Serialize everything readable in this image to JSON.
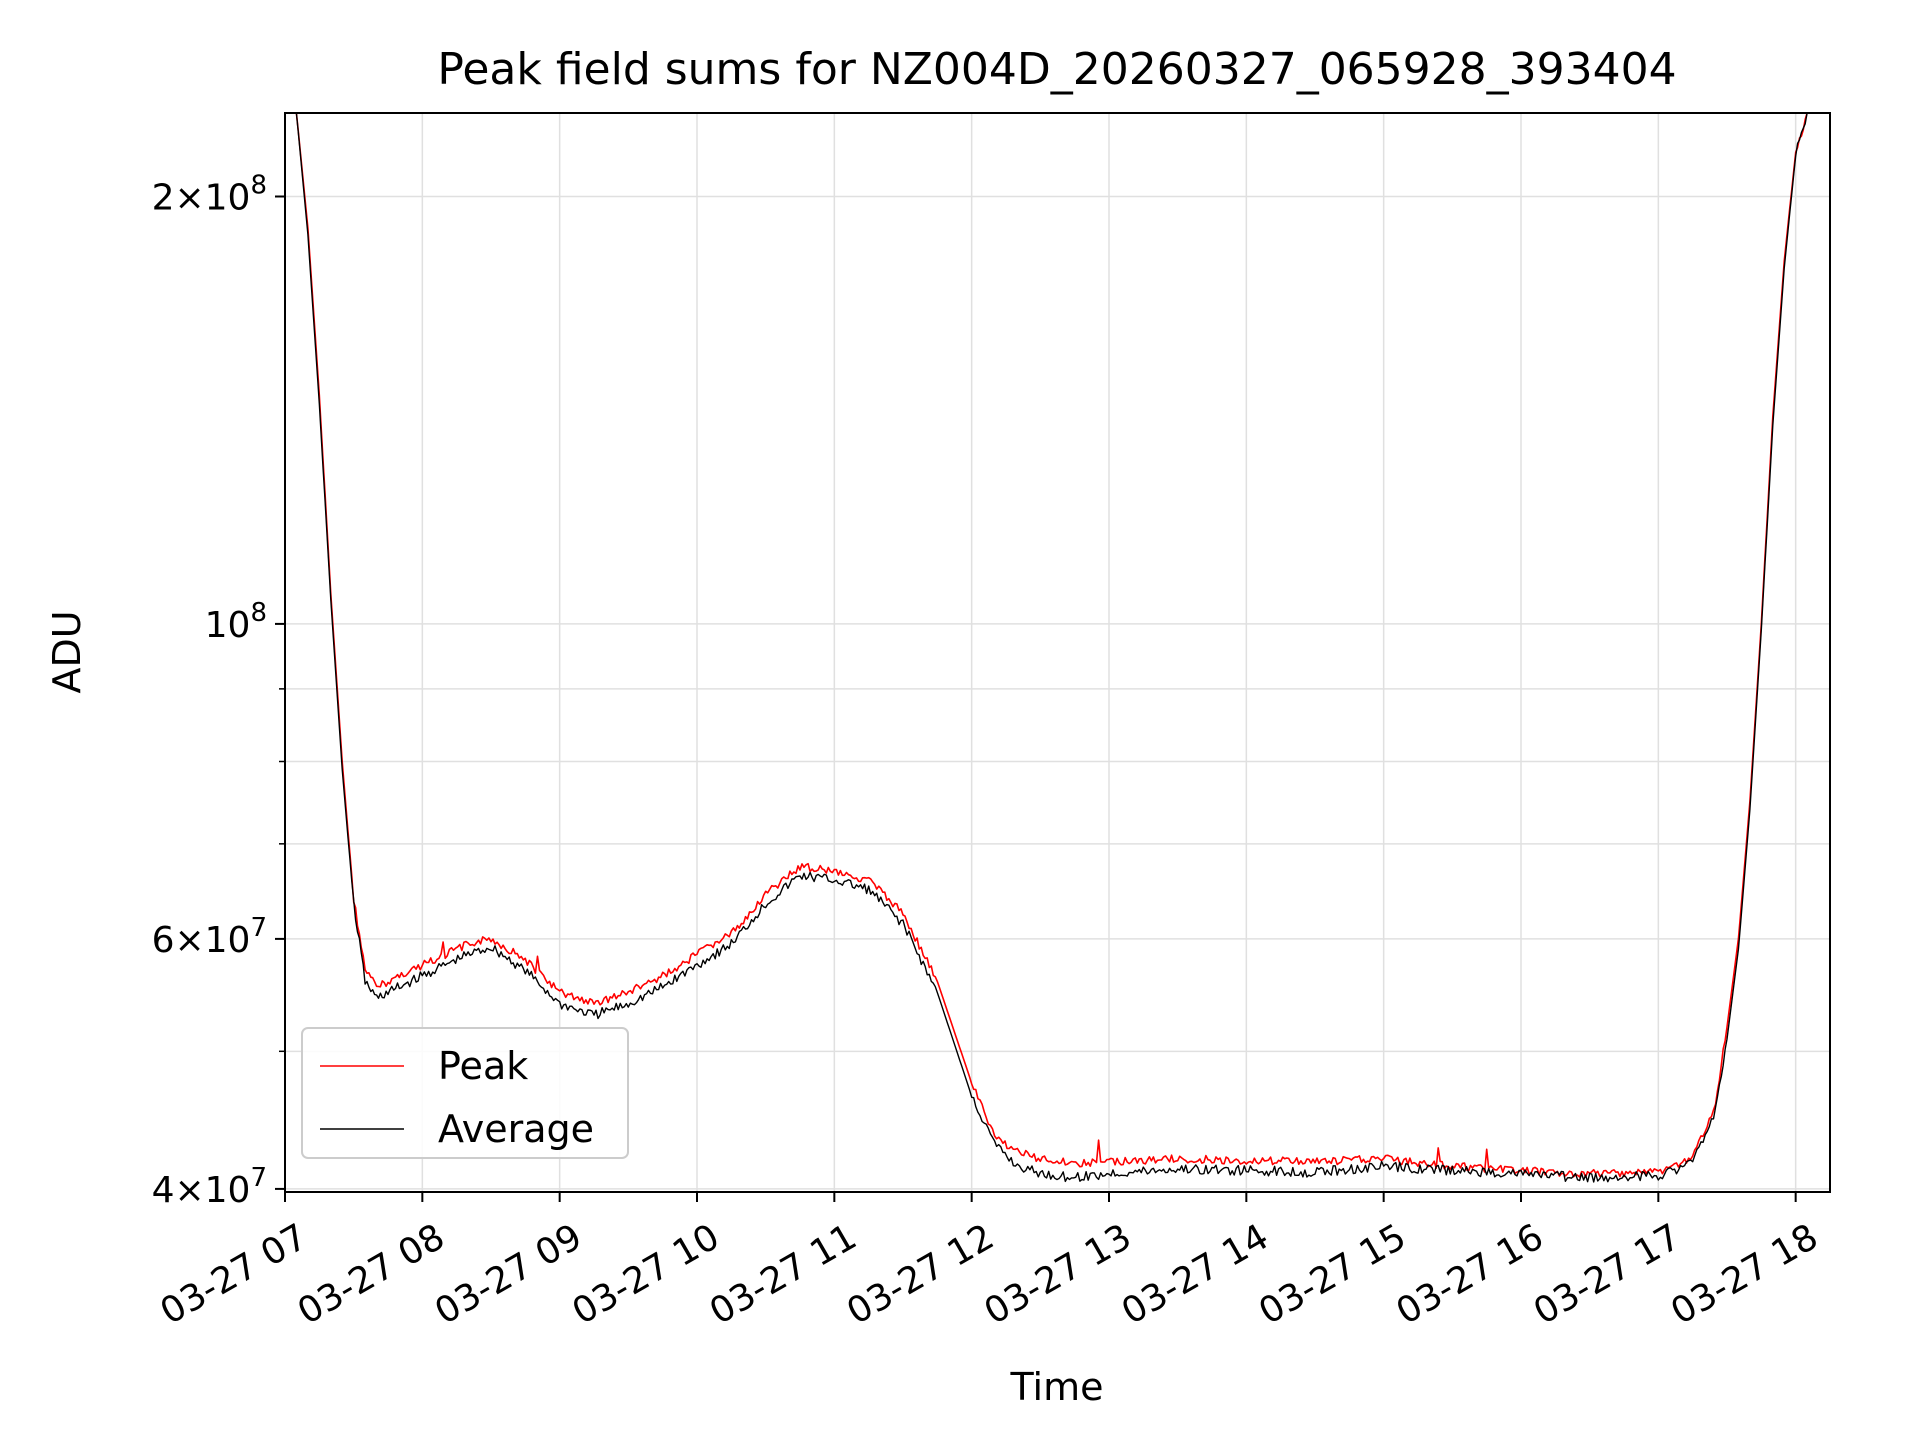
{
  "chart_data": {
    "type": "line",
    "title": "Peak field sums for NZ004D_20260327_065928_393404",
    "xlabel": "Time",
    "ylabel": "ADU",
    "yscale": "log",
    "grid": true,
    "legend_position": "lower-left",
    "xlim": [
      "2026-03-27 07:00",
      "2026-03-27 18:15"
    ],
    "ylim": [
      39800000,
      229000000
    ],
    "xticks": [
      {
        "t": "2026-03-27 07:00",
        "label": "03-27 07"
      },
      {
        "t": "2026-03-27 08:00",
        "label": "03-27 08"
      },
      {
        "t": "2026-03-27 09:00",
        "label": "03-27 09"
      },
      {
        "t": "2026-03-27 10:00",
        "label": "03-27 10"
      },
      {
        "t": "2026-03-27 11:00",
        "label": "03-27 11"
      },
      {
        "t": "2026-03-27 12:00",
        "label": "03-27 12"
      },
      {
        "t": "2026-03-27 13:00",
        "label": "03-27 13"
      },
      {
        "t": "2026-03-27 14:00",
        "label": "03-27 14"
      },
      {
        "t": "2026-03-27 15:00",
        "label": "03-27 15"
      },
      {
        "t": "2026-03-27 16:00",
        "label": "03-27 16"
      },
      {
        "t": "2026-03-27 17:00",
        "label": "03-27 17"
      },
      {
        "t": "2026-03-27 18:00",
        "label": "03-27 18"
      }
    ],
    "yticks_major": [
      {
        "v": 40000000,
        "base": "4",
        "exp": "7"
      },
      {
        "v": 60000000,
        "base": "6",
        "exp": "7"
      },
      {
        "v": 100000000,
        "base": "",
        "exp": "8"
      },
      {
        "v": 200000000,
        "base": "2",
        "exp": "8"
      }
    ],
    "yticks_minor": [
      50000000,
      70000000,
      80000000,
      90000000
    ],
    "series": [
      {
        "name": "Peak",
        "color": "#ff0000",
        "x": [
          "2026-03-27 07:05",
          "2026-03-27 07:10",
          "2026-03-27 07:15",
          "2026-03-27 07:20",
          "2026-03-27 07:25",
          "2026-03-27 07:30",
          "2026-03-27 07:35",
          "2026-03-27 07:40",
          "2026-03-27 07:45",
          "2026-03-27 07:50",
          "2026-03-27 08:00",
          "2026-03-27 08:10",
          "2026-03-27 08:20",
          "2026-03-27 08:30",
          "2026-03-27 08:45",
          "2026-03-27 09:00",
          "2026-03-27 09:15",
          "2026-03-27 09:30",
          "2026-03-27 09:45",
          "2026-03-27 10:00",
          "2026-03-27 10:15",
          "2026-03-27 10:30",
          "2026-03-27 10:45",
          "2026-03-27 11:00",
          "2026-03-27 11:15",
          "2026-03-27 11:30",
          "2026-03-27 11:45",
          "2026-03-27 12:00",
          "2026-03-27 12:10",
          "2026-03-27 12:20",
          "2026-03-27 12:30",
          "2026-03-27 12:40",
          "2026-03-27 12:50",
          "2026-03-27 13:00",
          "2026-03-27 13:30",
          "2026-03-27 14:00",
          "2026-03-27 14:30",
          "2026-03-27 15:00",
          "2026-03-27 15:30",
          "2026-03-27 16:00",
          "2026-03-27 16:30",
          "2026-03-27 17:00",
          "2026-03-27 17:15",
          "2026-03-27 17:25",
          "2026-03-27 17:30",
          "2026-03-27 17:35",
          "2026-03-27 17:40",
          "2026-03-27 17:45",
          "2026-03-27 17:50",
          "2026-03-27 17:55",
          "2026-03-27 18:00",
          "2026-03-27 18:05"
        ],
        "values": [
          229000000,
          190000000,
          145000000,
          105000000,
          80000000,
          64000000,
          57000000,
          55500000,
          56000000,
          56500000,
          57500000,
          58500000,
          59500000,
          60000000,
          58000000,
          55000000,
          54000000,
          55000000,
          56500000,
          58500000,
          60500000,
          64500000,
          67500000,
          67000000,
          66000000,
          62500000,
          56000000,
          47500000,
          43500000,
          42500000,
          42000000,
          41800000,
          41700000,
          41800000,
          42000000,
          41900000,
          41800000,
          42000000,
          41500000,
          41200000,
          41000000,
          41100000,
          42000000,
          46000000,
          52000000,
          60000000,
          75000000,
          100000000,
          140000000,
          180000000,
          215000000,
          229000000
        ]
      },
      {
        "name": "Average",
        "color": "#000000",
        "x": [
          "2026-03-27 07:05",
          "2026-03-27 07:10",
          "2026-03-27 07:15",
          "2026-03-27 07:20",
          "2026-03-27 07:25",
          "2026-03-27 07:30",
          "2026-03-27 07:35",
          "2026-03-27 07:40",
          "2026-03-27 07:45",
          "2026-03-27 07:50",
          "2026-03-27 08:00",
          "2026-03-27 08:10",
          "2026-03-27 08:20",
          "2026-03-27 08:30",
          "2026-03-27 08:45",
          "2026-03-27 09:00",
          "2026-03-27 09:15",
          "2026-03-27 09:30",
          "2026-03-27 09:45",
          "2026-03-27 10:00",
          "2026-03-27 10:15",
          "2026-03-27 10:30",
          "2026-03-27 10:45",
          "2026-03-27 11:00",
          "2026-03-27 11:15",
          "2026-03-27 11:30",
          "2026-03-27 11:45",
          "2026-03-27 12:00",
          "2026-03-27 12:10",
          "2026-03-27 12:20",
          "2026-03-27 12:30",
          "2026-03-27 12:40",
          "2026-03-27 12:50",
          "2026-03-27 13:00",
          "2026-03-27 13:30",
          "2026-03-27 14:00",
          "2026-03-27 14:30",
          "2026-03-27 15:00",
          "2026-03-27 15:30",
          "2026-03-27 16:00",
          "2026-03-27 16:30",
          "2026-03-27 17:00",
          "2026-03-27 17:15",
          "2026-03-27 17:25",
          "2026-03-27 17:30",
          "2026-03-27 17:35",
          "2026-03-27 17:40",
          "2026-03-27 17:45",
          "2026-03-27 17:50",
          "2026-03-27 17:55",
          "2026-03-27 18:00",
          "2026-03-27 18:05"
        ],
        "values": [
          229000000,
          188000000,
          143000000,
          104000000,
          79000000,
          63500000,
          56000000,
          54500000,
          55000000,
          55500000,
          56500000,
          57500000,
          58500000,
          59200000,
          57000000,
          54000000,
          53000000,
          54000000,
          55500000,
          57500000,
          59500000,
          63500000,
          66500000,
          66000000,
          65000000,
          61500000,
          55000000,
          46500000,
          43000000,
          41500000,
          41000000,
          40800000,
          40800000,
          41000000,
          41300000,
          41200000,
          41100000,
          41500000,
          41200000,
          41000000,
          40700000,
          40900000,
          41700000,
          45500000,
          51000000,
          59000000,
          74000000,
          99000000,
          138000000,
          178000000,
          214000000,
          229000000
        ]
      }
    ]
  }
}
